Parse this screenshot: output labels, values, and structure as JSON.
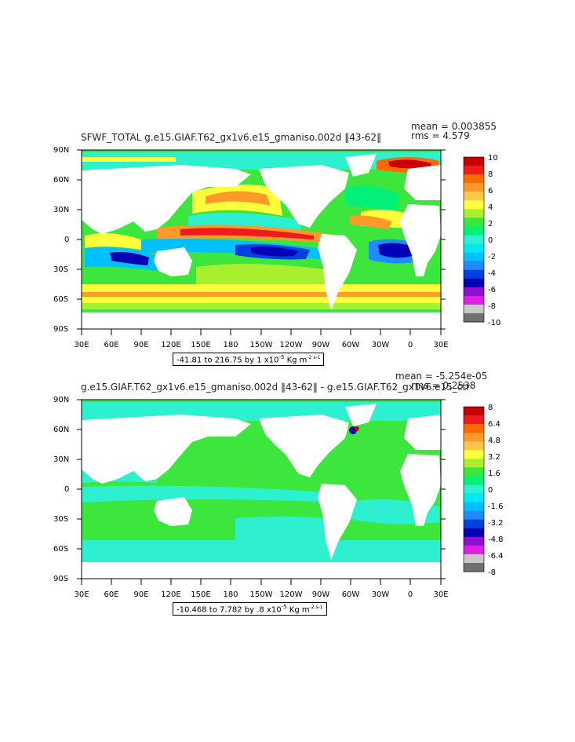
{
  "panels": [
    {
      "title": "SFWF_TOTAL g.e15.GIAF.T62_gx1v6.e15_gmaniso.002d ‖43-62‖",
      "mean": "mean = 0.003855",
      "rms": "rms = 4.579",
      "footer": "-41.81 to 216.75 by 1 x10",
      "footer_exp": "-5",
      "footer_unit": " Kg m",
      "footer_unit_exp": "-2 s-1",
      "lon_ticks": [
        "30E",
        "60E",
        "90E",
        "120E",
        "150E",
        "180",
        "150W",
        "120W",
        "90W",
        "60W",
        "30W",
        "0",
        "30E"
      ],
      "lat_ticks": [
        "90N",
        "60N",
        "30N",
        "0",
        "30S",
        "60S",
        "90S"
      ],
      "colorbar_labels": [
        "10",
        "8",
        "6",
        "4",
        "2",
        "0",
        "-2",
        "-4",
        "-6",
        "-8",
        "-10"
      ],
      "colorbar_colors": [
        "#c80000",
        "#ee1c1c",
        "#ff6a00",
        "#ff9a2a",
        "#ffc84a",
        "#ffff3c",
        "#a8ef2e",
        "#3ce63c",
        "#00f078",
        "#2cf0d0",
        "#00e8f0",
        "#00c0ff",
        "#1e8cff",
        "#0040e0",
        "#0000b4",
        "#9010d0",
        "#e020e0",
        "#c8c8c8",
        "#707070"
      ]
    },
    {
      "title": "g.e15.GIAF.T62_gx1v6.e15_gmaniso.002d ‖43-62‖ - g.e15.GIAF.T62_gx1v6.e15_ctr",
      "mean": "mean = -5.254e-05",
      "rms": "rms = 0.2538",
      "footer": "-10.468 to 7.782 by .8 x10",
      "footer_exp": "-5",
      "footer_unit": " Kg m",
      "footer_unit_exp": "-2 s-1",
      "lon_ticks": [
        "30E",
        "60E",
        "90E",
        "120E",
        "150E",
        "180",
        "150W",
        "120W",
        "90W",
        "60W",
        "30W",
        "0",
        "30E"
      ],
      "lat_ticks": [
        "90N",
        "60N",
        "30N",
        "0",
        "30S",
        "60S",
        "90S"
      ],
      "colorbar_labels": [
        "8",
        "6.4",
        "4.8",
        "3.2",
        "1.6",
        "0",
        "-1.6",
        "-3.2",
        "-4.8",
        "-6.4",
        "-8"
      ],
      "colorbar_colors": [
        "#c80000",
        "#ee1c1c",
        "#ff6a00",
        "#ff9a2a",
        "#ffc84a",
        "#ffff3c",
        "#a8ef2e",
        "#3ce63c",
        "#00f078",
        "#2cf0d0",
        "#00e8f0",
        "#00c0ff",
        "#1e8cff",
        "#0040e0",
        "#0000b4",
        "#9010d0",
        "#e020e0",
        "#c8c8c8",
        "#707070"
      ]
    }
  ]
}
